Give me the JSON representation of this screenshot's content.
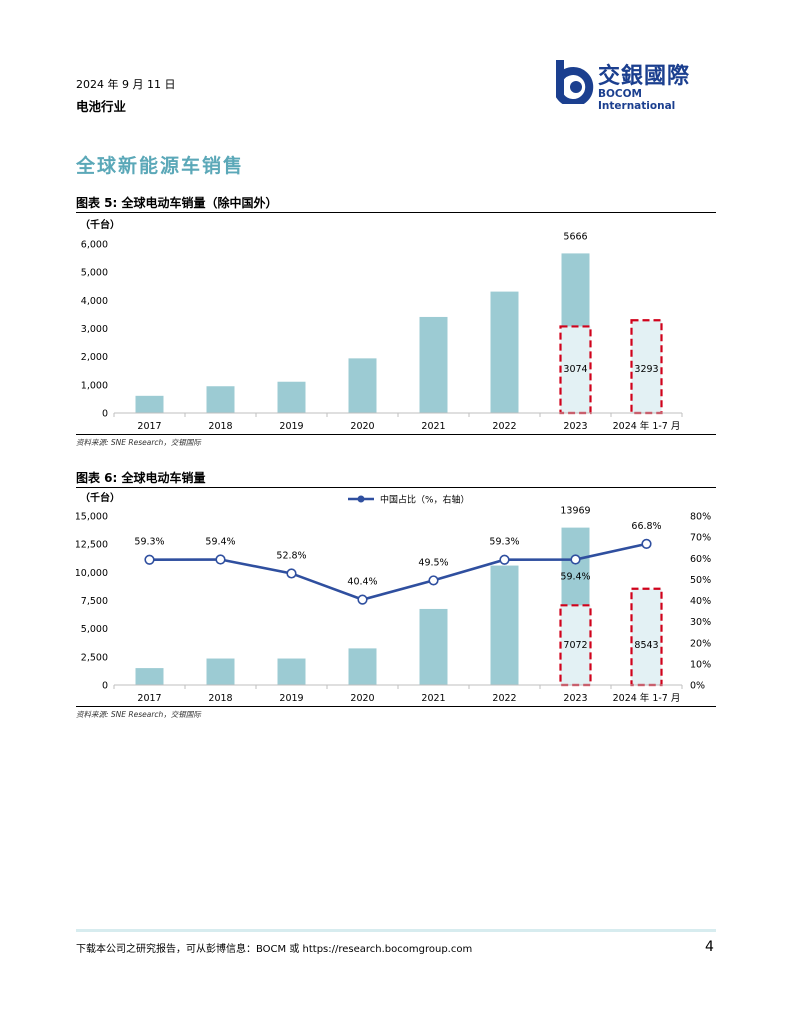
{
  "header": {
    "date": "2024 年 9 月 11 日",
    "industry": "电池行业",
    "logo_cn": "交銀國際",
    "logo_en": "BOCOM International"
  },
  "section_title": "全球新能源车销售",
  "figure5": {
    "title": "图表 5: 全球电动车销量（除中国外）",
    "source": "资料来源: SNE Research，交银国际"
  },
  "figure6": {
    "title": "图表 6: 全球电动车销量",
    "source": "资料来源: SNE Research，交银国际"
  },
  "chart_data": [
    {
      "type": "bar",
      "unit_label": "（千台）",
      "categories": [
        "2017",
        "2018",
        "2019",
        "2020",
        "2021",
        "2022",
        "2023",
        "2024 年 1-7 月"
      ],
      "values": [
        610,
        950,
        1110,
        1940,
        3410,
        4310,
        5666,
        3293
      ],
      "highlight": [
        {
          "category": "2023",
          "value": 3074,
          "label": "3074"
        },
        {
          "category": "2024 年 1-7 月",
          "value": 3293,
          "label": "3293"
        }
      ],
      "data_labels": [
        {
          "category": "2023",
          "label": "5666"
        }
      ],
      "yticks": [
        "0",
        "1,000",
        "2,000",
        "3,000",
        "4,000",
        "5,000",
        "6,000"
      ],
      "ylim": [
        0,
        6000
      ],
      "colors": {
        "bar": "#9ccbd3",
        "highlight_fill": "#e3f1f4",
        "highlight_border": "#d0021b"
      }
    },
    {
      "type": "bar",
      "unit_label": "（千台）",
      "categories": [
        "2017",
        "2018",
        "2019",
        "2020",
        "2021",
        "2022",
        "2023",
        "2024 年 1-7 月"
      ],
      "values": [
        1500,
        2350,
        2350,
        3250,
        6750,
        10600,
        13969,
        8543
      ],
      "highlight": [
        {
          "category": "2023",
          "value": 7072,
          "label": "7072"
        },
        {
          "category": "2024 年 1-7 月",
          "value": 8543,
          "label": "8543"
        }
      ],
      "data_labels": [
        {
          "category": "2023",
          "label": "13969"
        }
      ],
      "yticks": [
        "0",
        "2,500",
        "5,000",
        "7,500",
        "10,000",
        "12,500",
        "15,000"
      ],
      "ylim": [
        0,
        15000
      ],
      "line_series": {
        "name": "中国占比（%，右轴）",
        "values": [
          59.3,
          59.4,
          52.8,
          40.4,
          49.5,
          59.3,
          59.4,
          66.8
        ],
        "labels": [
          "59.3%",
          "59.4%",
          "52.8%",
          "40.4%",
          "49.5%",
          "59.3%",
          "59.4%",
          "66.8%"
        ]
      },
      "y2ticks": [
        "0%",
        "10%",
        "20%",
        "30%",
        "40%",
        "50%",
        "60%",
        "70%",
        "80%"
      ],
      "y2lim": [
        0,
        80
      ],
      "colors": {
        "bar": "#9ccbd3",
        "line": "#2f4f9f",
        "highlight_fill": "#e3f1f4",
        "highlight_border": "#d0021b"
      }
    }
  ],
  "footer": {
    "text": "下载本公司之研究报告，可从彭博信息：BOCM 或 https://research.bocomgroup.com",
    "page": "4"
  }
}
